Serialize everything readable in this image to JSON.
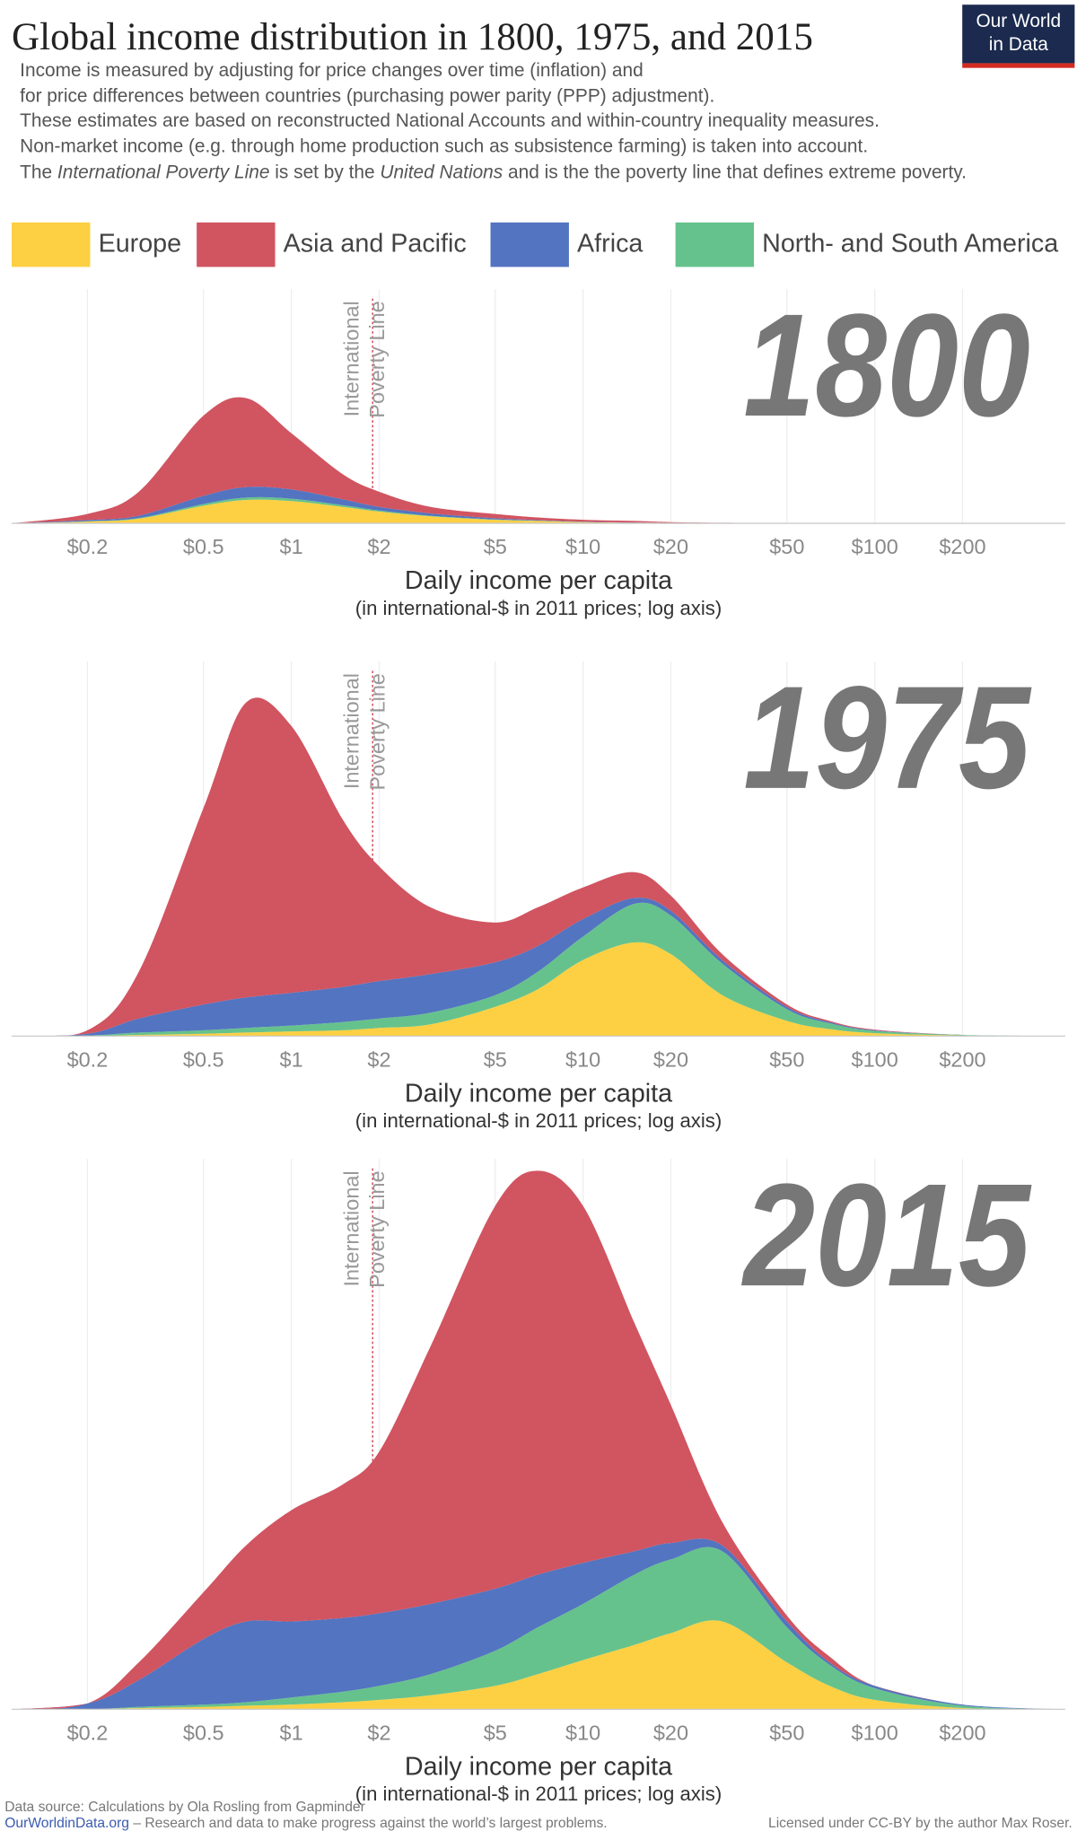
{
  "header": {
    "title": "Global income distribution in 1800, 1975, and 2015",
    "logo": [
      "Our World",
      "in Data"
    ],
    "notes": [
      "Income is measured by adjusting for price changes over time (inflation) and",
      "for price differences between countries (purchasing power parity (PPP) adjustment).",
      "These estimates are based on reconstructed National Accounts and within-country inequality measures.",
      "Non-market income (e.g. through home production such as subsistence farming) is taken into account.",
      [
        "The ",
        "International Poverty Line",
        " is set by the ",
        "United Nations",
        " and is the the poverty line that defines extreme poverty."
      ]
    ]
  },
  "chart_data": [
    {
      "type": "area",
      "title": "1800",
      "x": [
        0.11,
        0.2,
        0.3,
        0.5,
        0.7,
        1,
        1.5,
        2,
        3,
        5,
        7,
        10,
        15,
        20,
        30,
        50,
        70,
        100,
        200,
        450
      ],
      "xlim": [
        0.11,
        450
      ],
      "log_x": true,
      "ylim": [
        0,
        200
      ],
      "grid": true,
      "xticks": [
        {
          "value": 0.2,
          "label": "$0.2"
        },
        {
          "value": 0.5,
          "label": "$0.5"
        },
        {
          "value": 1,
          "label": "$1"
        },
        {
          "value": 2,
          "label": "$2"
        },
        {
          "value": 5,
          "label": "$5"
        },
        {
          "value": 10,
          "label": "$10"
        },
        {
          "value": 20,
          "label": "$20"
        },
        {
          "value": 50,
          "label": "$50"
        },
        {
          "value": 100,
          "label": "$100"
        },
        {
          "value": 200,
          "label": "$200"
        }
      ],
      "xlabel": "Daily income per capita",
      "xlabel_note": "(in international-$ in 2011 prices; log axis)",
      "annotation": {
        "x": 1.9,
        "lines": [
          "International",
          "Poverty Line"
        ]
      },
      "series": [
        {
          "name": "Europe",
          "color": "#fdd043",
          "values": [
            0,
            1.5,
            4,
            15,
            20,
            19,
            14,
            10,
            6,
            3,
            2,
            1,
            0.5,
            0.3,
            0,
            0,
            0,
            0,
            0,
            0
          ]
        },
        {
          "name": "Asia and Pacific",
          "color": "#d15461",
          "values": [
            0,
            5.2,
            20.5,
            68.5,
            76,
            48,
            21.5,
            13,
            5.5,
            3.7,
            2.3,
            1.6,
            1.3,
            0.7,
            0.5,
            0.3,
            0,
            0,
            0,
            0
          ]
        },
        {
          "name": "Africa",
          "color": "#5374c0",
          "values": [
            0,
            1,
            2,
            7,
            9,
            8,
            5,
            3,
            2,
            1,
            0.5,
            0.3,
            0.2,
            0,
            0,
            0,
            0,
            0,
            0,
            0
          ]
        },
        {
          "name": "North- and South America",
          "color": "#66c28c",
          "values": [
            0,
            0.3,
            0.5,
            1.5,
            2,
            2,
            1.5,
            1,
            0.5,
            0.3,
            0.2,
            0.1,
            0,
            0,
            0,
            0,
            0,
            0,
            0,
            0
          ]
        }
      ]
    },
    {
      "type": "area",
      "title": "1975",
      "x": [
        0.11,
        0.2,
        0.3,
        0.5,
        0.7,
        1,
        1.5,
        2,
        3,
        5,
        7,
        10,
        15,
        20,
        30,
        50,
        70,
        100,
        200,
        450
      ],
      "xlim": [
        0.11,
        450
      ],
      "log_x": true,
      "ylim": [
        0,
        320
      ],
      "grid": true,
      "xticks": [
        {
          "value": 0.2,
          "label": "$0.2"
        },
        {
          "value": 0.5,
          "label": "$0.5"
        },
        {
          "value": 1,
          "label": "$1"
        },
        {
          "value": 2,
          "label": "$2"
        },
        {
          "value": 5,
          "label": "$5"
        },
        {
          "value": 10,
          "label": "$10"
        },
        {
          "value": 20,
          "label": "$20"
        },
        {
          "value": 50,
          "label": "$50"
        },
        {
          "value": 100,
          "label": "$100"
        },
        {
          "value": 200,
          "label": "$200"
        }
      ],
      "xlabel": "Daily income per capita",
      "xlabel_note": "(in international-$ in 2011 prices; log axis)",
      "annotation": {
        "x": 1.9,
        "lines": [
          "International",
          "Poverty Line"
        ]
      },
      "series": [
        {
          "name": "Europe",
          "color": "#fdd043",
          "values": [
            0,
            0,
            1,
            2,
            3,
            4,
            5,
            7,
            10,
            25,
            40,
            65,
            80,
            70,
            35,
            13,
            6,
            2.5,
            0.5,
            0
          ]
        },
        {
          "name": "Asia and Pacific",
          "color": "#d15461",
          "values": [
            0,
            3,
            40,
            168,
            252,
            228,
            143,
            98,
            57,
            34,
            33,
            27,
            22,
            13,
            5,
            2,
            1,
            0.5,
            0,
            0
          ]
        },
        {
          "name": "Africa",
          "color": "#5374c0",
          "values": [
            0,
            1.5,
            12,
            22,
            26,
            28,
            30,
            32,
            33,
            28,
            22,
            15,
            5,
            4,
            3,
            2,
            1,
            0.5,
            0,
            0
          ]
        },
        {
          "name": "North- and South America",
          "color": "#66c28c",
          "values": [
            0,
            0.5,
            2,
            3,
            4,
            5,
            7,
            8,
            10,
            10,
            15,
            20,
            33,
            33,
            27,
            10,
            5,
            2,
            0.5,
            0
          ]
        }
      ]
    },
    {
      "type": "area",
      "title": "2015",
      "x": [
        0.11,
        0.2,
        0.3,
        0.5,
        0.7,
        1,
        1.5,
        2,
        3,
        5,
        7,
        10,
        15,
        20,
        30,
        50,
        70,
        100,
        200,
        450
      ],
      "xlim": [
        0.11,
        450
      ],
      "log_x": true,
      "ylim": [
        0,
        470
      ],
      "grid": true,
      "xticks": [
        {
          "value": 0.2,
          "label": "$0.2"
        },
        {
          "value": 0.5,
          "label": "$0.5"
        },
        {
          "value": 1,
          "label": "$1"
        },
        {
          "value": 2,
          "label": "$2"
        },
        {
          "value": 5,
          "label": "$5"
        },
        {
          "value": 10,
          "label": "$10"
        },
        {
          "value": 20,
          "label": "$20"
        },
        {
          "value": 50,
          "label": "$50"
        },
        {
          "value": 100,
          "label": "$100"
        },
        {
          "value": 200,
          "label": "$200"
        }
      ],
      "xlabel": "Daily income per capita",
      "xlabel_note": "(in international-$ in 2011 prices; log axis)",
      "annotation": {
        "x": 1.9,
        "lines": [
          "International",
          "Poverty Line"
        ]
      },
      "series": [
        {
          "name": "Europe",
          "color": "#fdd043",
          "values": [
            0,
            0,
            1,
            2,
            3,
            4,
            6,
            8,
            12,
            20,
            30,
            42,
            55,
            65,
            75,
            40,
            20,
            8,
            1,
            0
          ]
        },
        {
          "name": "Asia and Pacific",
          "color": "#d15461",
          "values": [
            0,
            0,
            15,
            40,
            65,
            95,
            114,
            138,
            220,
            327,
            345,
            305,
            195,
            118,
            20,
            5,
            5,
            0,
            0,
            0
          ]
        },
        {
          "name": "Africa",
          "color": "#5374c0",
          "values": [
            0,
            5,
            23,
            56,
            69,
            65,
            63,
            62,
            60,
            53,
            45,
            35,
            20,
            14,
            5,
            5,
            2,
            2,
            1,
            0
          ]
        },
        {
          "name": "North- and South America",
          "color": "#66c28c",
          "values": [
            0,
            0,
            1,
            2,
            3,
            6,
            9,
            12,
            18,
            30,
            40,
            48,
            60,
            63,
            60,
            30,
            18,
            10,
            2,
            0
          ]
        }
      ]
    }
  ],
  "footer": {
    "source": "Data source: Calculations by Ola Rosling from Gapminder",
    "site": "OurWorldinData.org",
    "tagline": " – Research and data to make progress against the world’s largest problems.",
    "license": "Licensed under CC-BY by the author Max Roser."
  }
}
